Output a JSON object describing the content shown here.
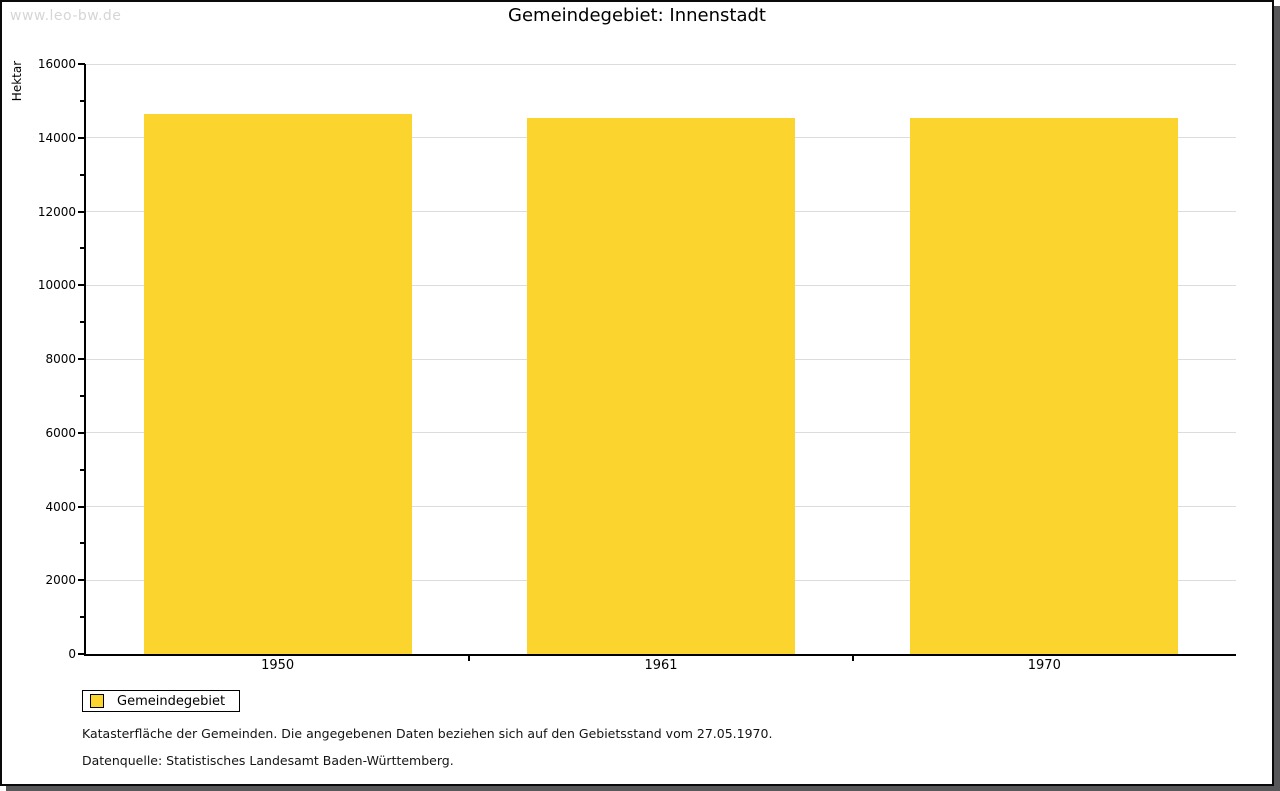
{
  "watermark": "www.leo-bw.de",
  "header": {
    "title": "Gemeindegebiet: Innenstadt"
  },
  "chart_data": {
    "type": "bar",
    "title": "Gemeindegebiet: Innenstadt",
    "xlabel": "",
    "ylabel": "Hektar",
    "categories": [
      "1950",
      "1961",
      "1970"
    ],
    "series": [
      {
        "name": "Gemeindegebiet",
        "values": [
          14650,
          14545,
          14540
        ]
      }
    ],
    "ylim": [
      0,
      16000
    ],
    "ytick_step": 2000,
    "yminor_step": 1000,
    "grid": "horizontal-major",
    "legend_position": "bottom-left",
    "bar_color": "#FCD42E"
  },
  "legend": {
    "items": [
      {
        "label": "Gemeindegebiet",
        "color": "#FCD42E"
      }
    ]
  },
  "footer": {
    "line1": "Katasterfläche der Gemeinden. Die angegebenen Daten beziehen sich auf den Gebietsstand vom 27.05.1970.",
    "line2": "Datenquelle: Statistisches Landesamt Baden-Württemberg."
  },
  "colors": {
    "bar": "#FCD42E",
    "gridline": "#dcdcdc",
    "axis": "#000000",
    "watermark": "#d6d6d6",
    "frame_shadow": "#58585a"
  }
}
